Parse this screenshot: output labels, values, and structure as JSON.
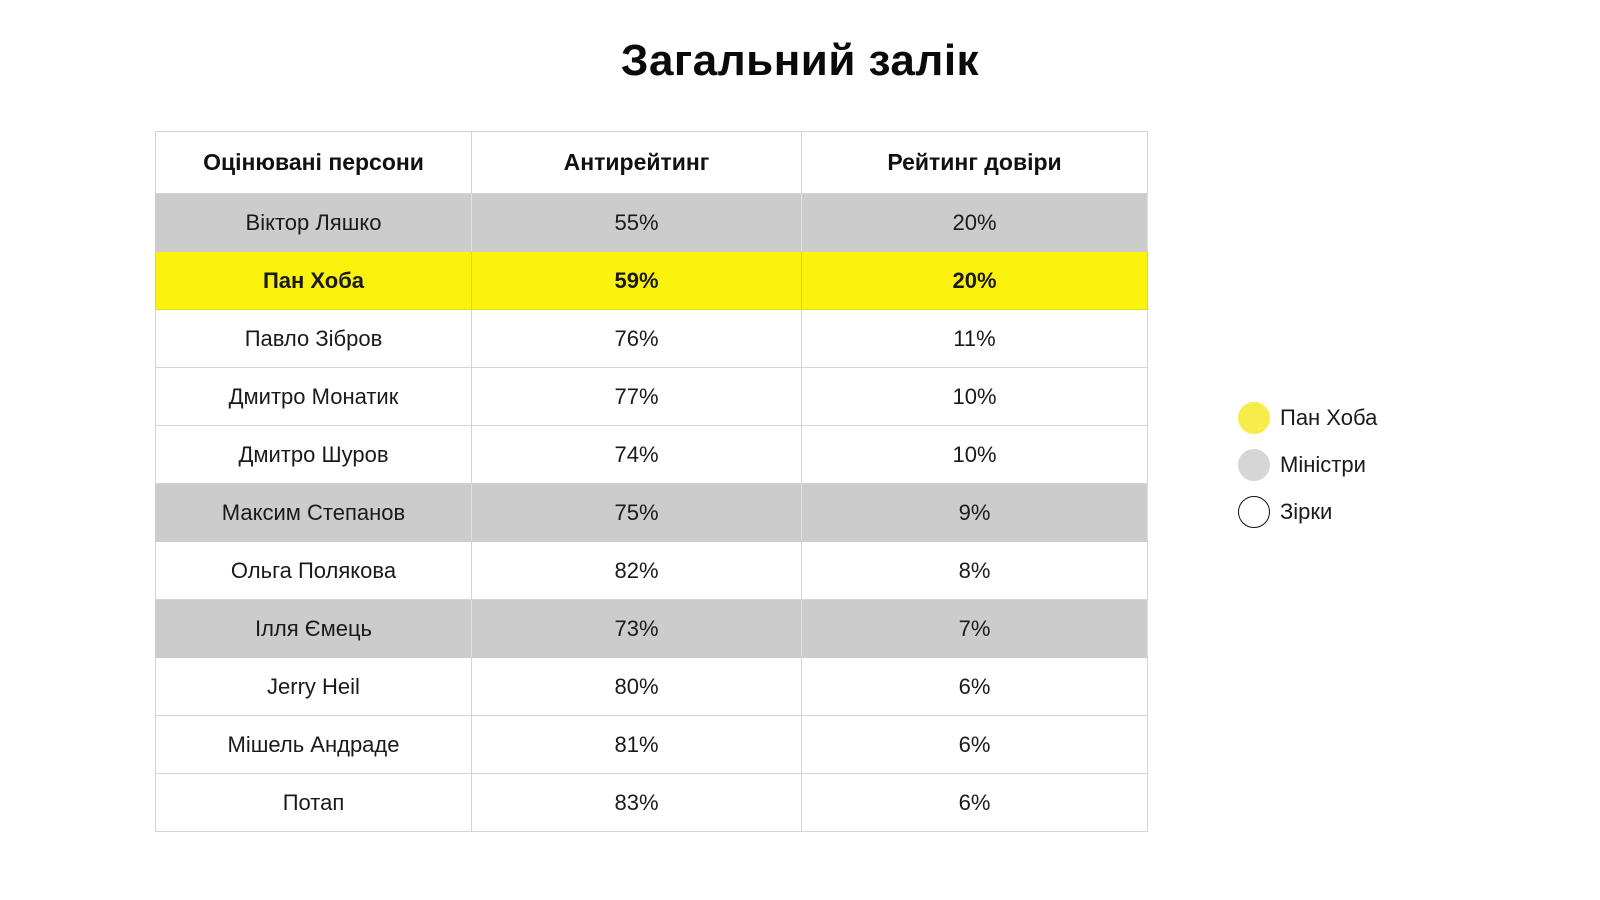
{
  "title": "Загальний залік",
  "table": {
    "headers": [
      "Оцінювані персони",
      "Антирейтинг",
      "Рейтинг довіри"
    ],
    "rows": [
      {
        "name": "Віктор Ляшко",
        "anti": "55%",
        "trust": "20%",
        "category": "ministers"
      },
      {
        "name": "Пан Хоба",
        "anti": "59%",
        "trust": "20%",
        "category": "highlight"
      },
      {
        "name": "Павло Зібров",
        "anti": "76%",
        "trust": "11%",
        "category": "stars"
      },
      {
        "name": "Дмитро Монатик",
        "anti": "77%",
        "trust": "10%",
        "category": "stars"
      },
      {
        "name": "Дмитро Шуров",
        "anti": "74%",
        "trust": "10%",
        "category": "stars"
      },
      {
        "name": "Максим Степанов",
        "anti": "75%",
        "trust": "9%",
        "category": "ministers"
      },
      {
        "name": "Ольга Полякова",
        "anti": "82%",
        "trust": "8%",
        "category": "stars"
      },
      {
        "name": "Ілля Ємець",
        "anti": "73%",
        "trust": "7%",
        "category": "ministers"
      },
      {
        "name": "Jerry Heil",
        "anti": "80%",
        "trust": "6%",
        "category": "stars"
      },
      {
        "name": "Мішель Андраде",
        "anti": "81%",
        "trust": "6%",
        "category": "stars"
      },
      {
        "name": "Потап",
        "anti": "83%",
        "trust": "6%",
        "category": "stars"
      }
    ]
  },
  "legend": [
    {
      "label": "Пан Хоба",
      "color": "#f7ed4a",
      "border": "#f7ed4a"
    },
    {
      "label": "Міністри",
      "color": "#d6d6d6",
      "border": "#d6d6d6"
    },
    {
      "label": "Зірки",
      "color": "#ffffff",
      "border": "#111111"
    }
  ],
  "colors": {
    "highlight": "#fbf30c",
    "ministers": "#cccccc",
    "stars": "#ffffff"
  }
}
